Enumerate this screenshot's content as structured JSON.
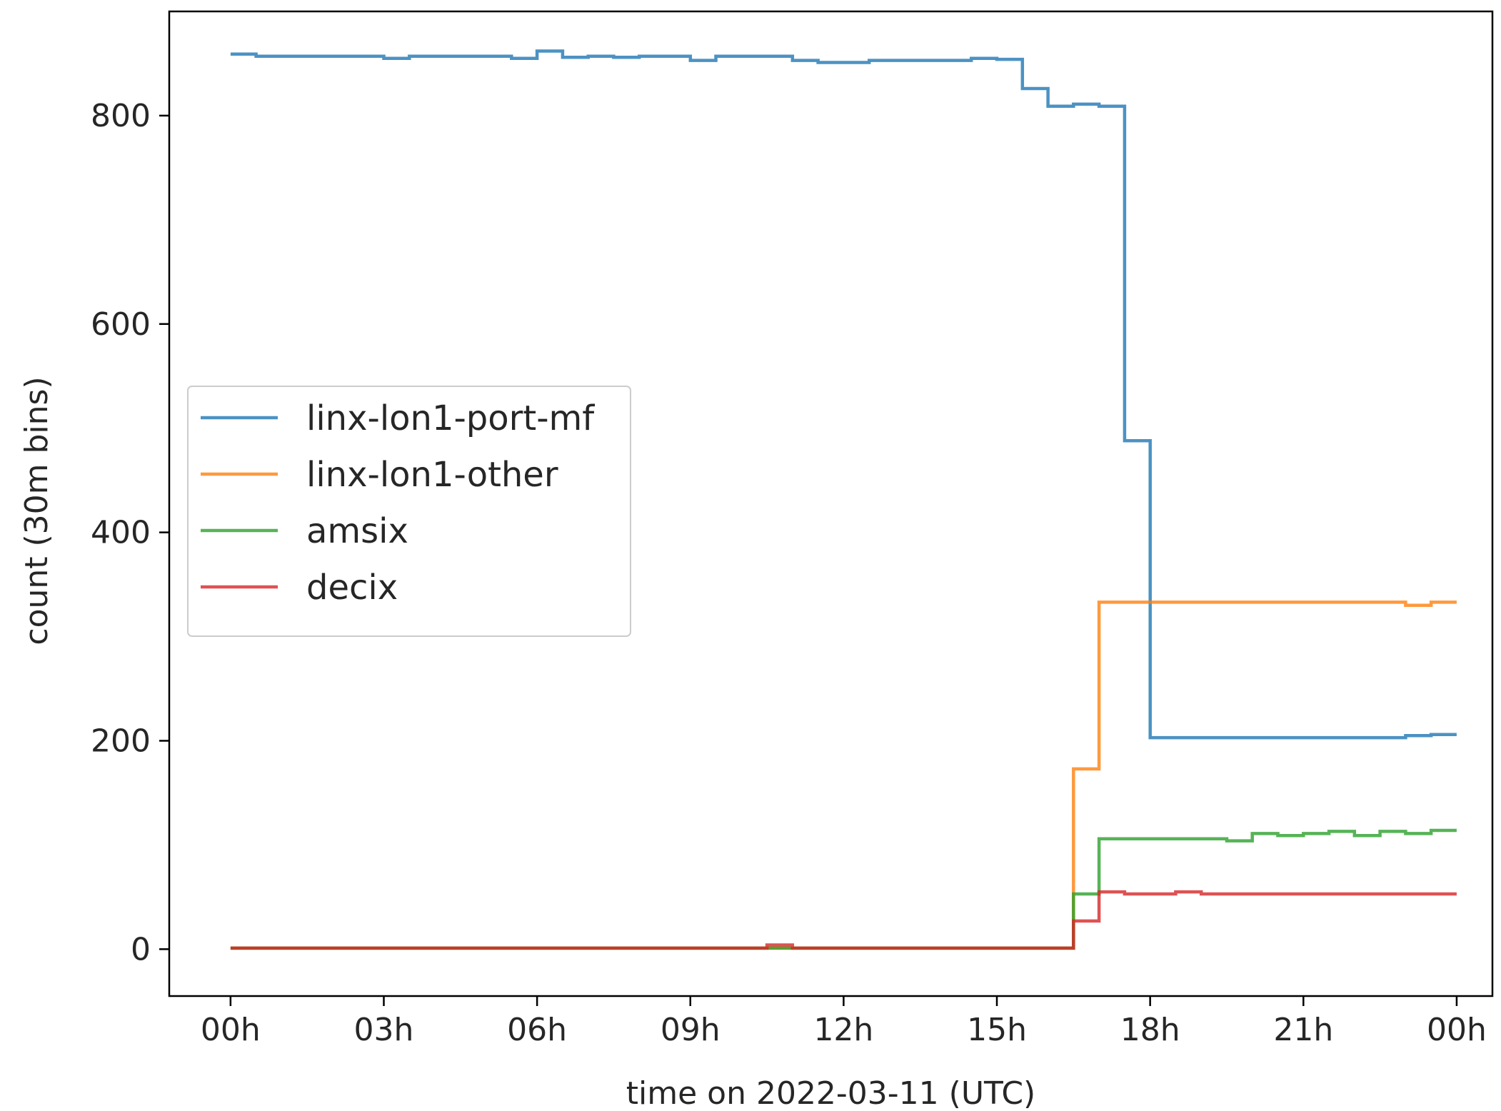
{
  "chart_data": {
    "type": "line",
    "step": "post",
    "xlabel": "time on 2022-03-11 (UTC)",
    "ylabel": "count (30m bins)",
    "x_unit": "hours since 2022-03-11 00:00 UTC",
    "xlim": [
      -1.2,
      24.7
    ],
    "ylim": [
      -45,
      900
    ],
    "x_ticks": [
      0,
      3,
      6,
      9,
      12,
      15,
      18,
      21,
      24
    ],
    "x_tick_labels": [
      "00h",
      "03h",
      "06h",
      "09h",
      "12h",
      "15h",
      "18h",
      "21h",
      "00h"
    ],
    "y_ticks": [
      0,
      200,
      400,
      600,
      800
    ],
    "y_tick_labels": [
      "0",
      "200",
      "400",
      "600",
      "800"
    ],
    "grid": false,
    "legend_position": "center-left",
    "x": [
      0,
      0.5,
      1,
      1.5,
      2,
      2.5,
      3,
      3.5,
      4,
      4.5,
      5,
      5.5,
      6,
      6.5,
      7,
      7.5,
      8,
      8.5,
      9,
      9.5,
      10,
      10.5,
      11,
      11.5,
      12,
      12.5,
      13,
      13.5,
      14,
      14.5,
      15,
      15.5,
      16,
      16.5,
      17,
      17.5,
      18,
      18.5,
      19,
      19.5,
      20,
      20.5,
      21,
      21.5,
      22,
      22.5,
      23,
      23.5
    ],
    "series": [
      {
        "name": "linx-lon1-port-mf",
        "color": "#1f77b4",
        "values": [
          859,
          857,
          857,
          857,
          857,
          857,
          855,
          857,
          857,
          857,
          857,
          855,
          862,
          856,
          857,
          856,
          857,
          857,
          853,
          857,
          857,
          857,
          853,
          851,
          851,
          853,
          853,
          853,
          853,
          855,
          854,
          826,
          809,
          811,
          809,
          488,
          203,
          203,
          203,
          203,
          203,
          203,
          203,
          203,
          203,
          203,
          205,
          206
        ]
      },
      {
        "name": "linx-lon1-other",
        "color": "#ff7f0e",
        "values": [
          1,
          1,
          1,
          1,
          1,
          1,
          1,
          1,
          1,
          1,
          1,
          1,
          1,
          1,
          1,
          1,
          1,
          1,
          1,
          1,
          1,
          1,
          1,
          1,
          1,
          1,
          1,
          1,
          1,
          1,
          1,
          1,
          1,
          173,
          333,
          333,
          333,
          333,
          333,
          333,
          333,
          333,
          333,
          333,
          333,
          333,
          330,
          333
        ]
      },
      {
        "name": "amsix",
        "color": "#2ca02c",
        "values": [
          1,
          1,
          1,
          1,
          1,
          1,
          1,
          1,
          1,
          1,
          1,
          1,
          1,
          1,
          1,
          1,
          1,
          1,
          1,
          1,
          1,
          1,
          1,
          1,
          1,
          1,
          1,
          1,
          1,
          1,
          1,
          1,
          1,
          53,
          106,
          106,
          106,
          106,
          106,
          104,
          111,
          109,
          111,
          113,
          109,
          113,
          111,
          114
        ]
      },
      {
        "name": "decix",
        "color": "#d62728",
        "values": [
          1,
          1,
          1,
          1,
          1,
          1,
          1,
          1,
          1,
          1,
          1,
          1,
          1,
          1,
          1,
          1,
          1,
          1,
          1,
          1,
          1,
          4,
          1,
          1,
          1,
          1,
          1,
          1,
          1,
          1,
          1,
          1,
          1,
          27,
          55,
          53,
          53,
          55,
          53,
          53,
          53,
          53,
          53,
          53,
          53,
          53,
          53,
          53
        ]
      }
    ],
    "line_alpha": 0.8
  }
}
